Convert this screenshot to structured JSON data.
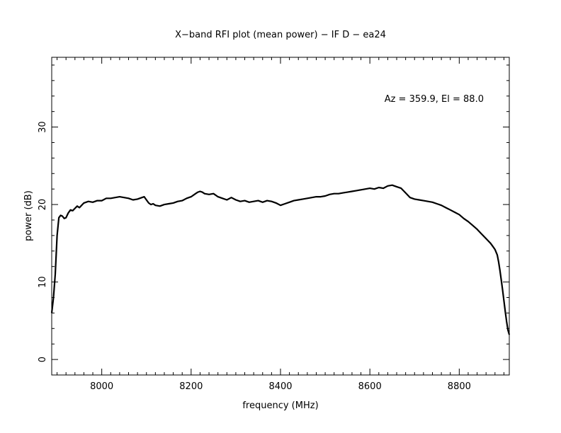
{
  "chart_data": {
    "type": "line",
    "title": "X−band RFI plot (mean power) − IF D − ea24",
    "xlabel": "frequency (MHz)",
    "ylabel": "power (dB)",
    "annotation": "Az = 359.9, El = 88.0",
    "xlim": [
      7888,
      8912
    ],
    "ylim": [
      -2,
      39
    ],
    "x_ticks": [
      8000,
      8200,
      8400,
      8600,
      8800
    ],
    "x_tick_labels": [
      "8000",
      "8200",
      "8400",
      "8600",
      "8800"
    ],
    "y_ticks": [
      0,
      10,
      20,
      30
    ],
    "y_tick_labels": [
      "0",
      "10",
      "20",
      "30"
    ],
    "grid": false,
    "line_color": "#000000",
    "series": [
      {
        "x": [
          7888,
          7892,
          7896,
          7900,
          7904,
          7908,
          7912,
          7916,
          7920,
          7925,
          7930,
          7935,
          7940,
          7945,
          7950,
          7960,
          7970,
          7980,
          7990,
          8000,
          8010,
          8020,
          8030,
          8040,
          8050,
          8060,
          8070,
          8080,
          8090,
          8095,
          8100,
          8105,
          8110,
          8115,
          8120,
          8130,
          8140,
          8150,
          8160,
          8170,
          8180,
          8190,
          8200,
          8210,
          8215,
          8220,
          8225,
          8230,
          8240,
          8250,
          8260,
          8270,
          8280,
          8290,
          8300,
          8310,
          8320,
          8330,
          8340,
          8350,
          8360,
          8370,
          8380,
          8390,
          8400,
          8410,
          8420,
          8430,
          8440,
          8450,
          8460,
          8470,
          8480,
          8490,
          8500,
          8510,
          8520,
          8530,
          8540,
          8550,
          8560,
          8570,
          8580,
          8590,
          8600,
          8610,
          8620,
          8630,
          8640,
          8650,
          8660,
          8670,
          8680,
          8690,
          8700,
          8710,
          8720,
          8730,
          8740,
          8750,
          8760,
          8770,
          8780,
          8790,
          8800,
          8810,
          8820,
          8830,
          8840,
          8850,
          8860,
          8865,
          8870,
          8875,
          8880,
          8885,
          8888,
          8891,
          8894,
          8897,
          8900,
          8903,
          8906,
          8909,
          8912
        ],
        "y": [
          6,
          8,
          11,
          16,
          18.3,
          18.6,
          18.5,
          18.2,
          18.3,
          18.9,
          19.3,
          19.2,
          19.5,
          19.8,
          19.6,
          20.2,
          20.4,
          20.3,
          20.5,
          20.5,
          20.8,
          20.8,
          20.9,
          21.0,
          20.9,
          20.8,
          20.6,
          20.7,
          20.9,
          21.0,
          20.6,
          20.2,
          20.0,
          20.1,
          19.9,
          19.8,
          20.0,
          20.1,
          20.2,
          20.4,
          20.5,
          20.8,
          21.0,
          21.4,
          21.6,
          21.7,
          21.6,
          21.4,
          21.3,
          21.4,
          21.0,
          20.8,
          20.6,
          20.9,
          20.6,
          20.4,
          20.5,
          20.3,
          20.4,
          20.5,
          20.3,
          20.5,
          20.4,
          20.2,
          19.9,
          20.1,
          20.3,
          20.5,
          20.6,
          20.7,
          20.8,
          20.9,
          21.0,
          21.0,
          21.1,
          21.3,
          21.4,
          21.4,
          21.5,
          21.6,
          21.7,
          21.8,
          21.9,
          22.0,
          22.1,
          22.0,
          22.2,
          22.1,
          22.4,
          22.5,
          22.3,
          22.1,
          21.5,
          20.9,
          20.7,
          20.6,
          20.5,
          20.4,
          20.3,
          20.1,
          19.9,
          19.6,
          19.3,
          19.0,
          18.7,
          18.2,
          17.8,
          17.3,
          16.8,
          16.2,
          15.6,
          15.3,
          15.0,
          14.6,
          14.2,
          13.5,
          12.6,
          11.5,
          10.3,
          9.0,
          7.6,
          6.2,
          4.9,
          3.8,
          3.2
        ]
      }
    ]
  }
}
